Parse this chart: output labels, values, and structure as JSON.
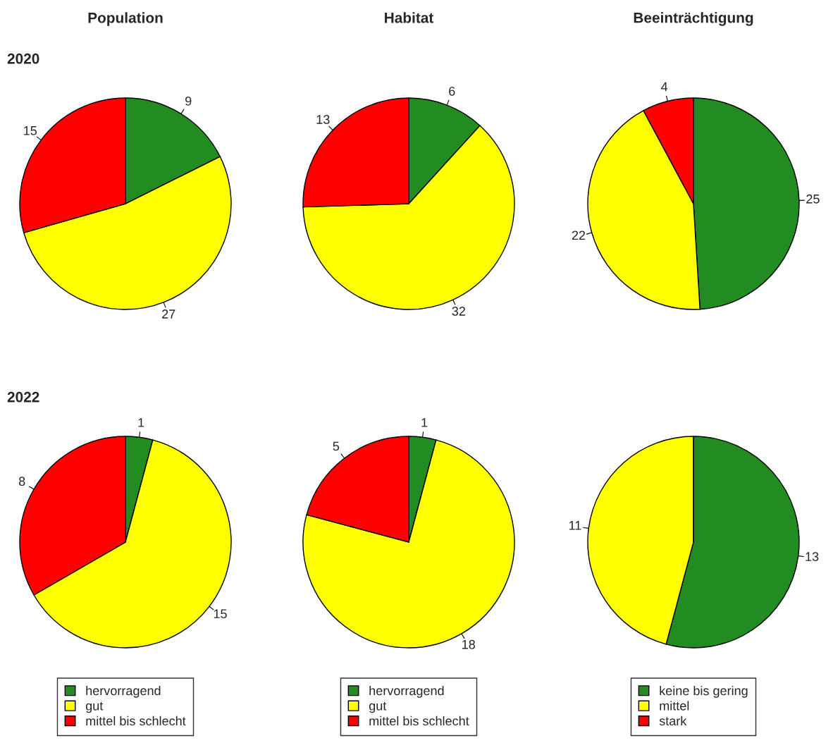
{
  "chart_data": [
    {
      "type": "pie",
      "title": "Population",
      "subtitle": "2020",
      "categories": [
        "hervorragend",
        "gut",
        "mittel bis schlecht"
      ],
      "values": [
        9,
        27,
        15
      ],
      "colors": [
        "#228b22",
        "#ffff00",
        "#ff0000"
      ],
      "data_labels": true,
      "legend": "bottom"
    },
    {
      "type": "pie",
      "title": "Habitat",
      "categories": [
        "hervorragend",
        "gut",
        "mittel bis schlecht"
      ],
      "values": [
        6,
        32,
        13
      ],
      "colors": [
        "#228b22",
        "#ffff00",
        "#ff0000"
      ],
      "data_labels": true,
      "legend": "bottom"
    },
    {
      "type": "pie",
      "title": "Beeinträchtigung",
      "categories": [
        "keine bis gering",
        "mittel",
        "stark"
      ],
      "values": [
        25,
        22,
        4
      ],
      "colors": [
        "#228b22",
        "#ffff00",
        "#ff0000"
      ],
      "data_labels": true,
      "legend": "bottom"
    },
    {
      "type": "pie",
      "subtitle": "2022",
      "categories": [
        null,
        null,
        null
      ],
      "values": [
        1,
        15,
        8
      ],
      "colors": [
        "#228b22",
        "#ffff00",
        "#ff0000"
      ],
      "data_labels": true
    },
    {
      "type": "pie",
      "categories": [
        null,
        null,
        null
      ],
      "values": [
        1,
        18,
        5
      ],
      "colors": [
        "#228b22",
        "#ffff00",
        "#ff0000"
      ],
      "data_labels": true
    },
    {
      "type": "pie",
      "categories": [
        null,
        null,
        null
      ],
      "values": [
        13,
        11,
        0
      ],
      "colors": [
        "#228b22",
        "#ffff00",
        "#ff0000"
      ],
      "value_labels": [
        "13",
        "11",
        null
      ]
    }
  ]
}
